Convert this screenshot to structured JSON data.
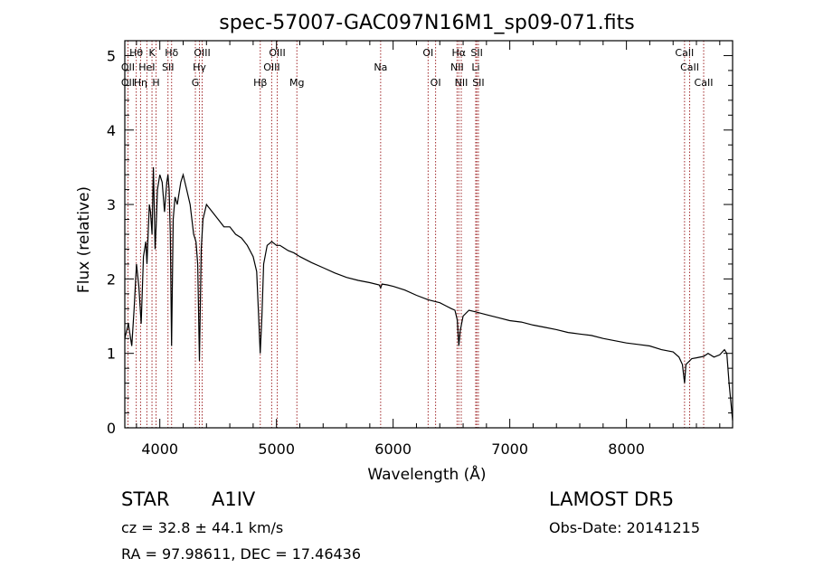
{
  "chart_data": {
    "type": "line",
    "title": "spec-57007-GAC097N16M1_sp09-071.fits",
    "xlabel": "Wavelength (Å)",
    "ylabel": "Flux (relative)",
    "xlim": [
      3700,
      8910
    ],
    "ylim": [
      0,
      5.2
    ],
    "x_ticks": [
      4000,
      5000,
      6000,
      7000,
      8000
    ],
    "y_ticks": [
      0,
      1,
      2,
      3,
      4,
      5
    ],
    "grid": false,
    "series": [
      {
        "color": "#000000",
        "x": [
          3700,
          3730,
          3760,
          3780,
          3800,
          3820,
          3840,
          3860,
          3880,
          3890,
          3900,
          3910,
          3920,
          3933,
          3945,
          3960,
          3968,
          3980,
          4000,
          4020,
          4040,
          4060,
          4070,
          4080,
          4090,
          4101,
          4115,
          4130,
          4150,
          4180,
          4200,
          4230,
          4260,
          4290,
          4310,
          4325,
          4340,
          4355,
          4370,
          4400,
          4450,
          4500,
          4550,
          4600,
          4650,
          4700,
          4750,
          4800,
          4830,
          4850,
          4861,
          4875,
          4890,
          4920,
          4960,
          5000,
          5030,
          5060,
          5100,
          5150,
          5200,
          5300,
          5400,
          5500,
          5600,
          5700,
          5800,
          5880,
          5893,
          5905,
          5950,
          6000,
          6100,
          6200,
          6300,
          6400,
          6450,
          6500,
          6530,
          6550,
          6563,
          6575,
          6600,
          6650,
          6700,
          6800,
          6900,
          7000,
          7100,
          7200,
          7300,
          7400,
          7500,
          7600,
          7700,
          7800,
          7900,
          8000,
          8100,
          8200,
          8300,
          8400,
          8450,
          8480,
          8498,
          8510,
          8542,
          8560,
          8600,
          8662,
          8700,
          8750,
          8800,
          8840,
          8860,
          8880,
          8910
        ],
        "y": [
          1.2,
          1.4,
          1.1,
          1.6,
          2.2,
          1.9,
          1.4,
          2.3,
          2.5,
          2.2,
          2.6,
          3.0,
          2.9,
          2.6,
          3.5,
          2.4,
          2.7,
          3.2,
          3.4,
          3.3,
          2.9,
          3.3,
          3.4,
          3.2,
          2.6,
          1.1,
          2.8,
          3.1,
          3.0,
          3.3,
          3.4,
          3.2,
          3.0,
          2.6,
          2.5,
          2.2,
          0.9,
          2.4,
          2.8,
          3.0,
          2.9,
          2.8,
          2.7,
          2.7,
          2.6,
          2.55,
          2.45,
          2.3,
          2.1,
          1.4,
          1.0,
          1.5,
          2.2,
          2.45,
          2.5,
          2.45,
          2.45,
          2.42,
          2.38,
          2.35,
          2.3,
          2.22,
          2.15,
          2.08,
          2.02,
          1.98,
          1.95,
          1.92,
          1.88,
          1.93,
          1.92,
          1.9,
          1.85,
          1.78,
          1.72,
          1.68,
          1.64,
          1.6,
          1.58,
          1.45,
          1.1,
          1.3,
          1.5,
          1.58,
          1.56,
          1.52,
          1.48,
          1.44,
          1.42,
          1.38,
          1.35,
          1.32,
          1.28,
          1.26,
          1.24,
          1.2,
          1.17,
          1.14,
          1.12,
          1.1,
          1.05,
          1.02,
          0.95,
          0.85,
          0.6,
          0.85,
          0.9,
          0.93,
          0.94,
          0.96,
          1.0,
          0.95,
          0.98,
          1.05,
          1.0,
          0.6,
          0.1
        ]
      }
    ],
    "spectral_lines": [
      {
        "label": "Hθ",
        "x": 3798,
        "row": 0
      },
      {
        "label": "OII",
        "x": 3727,
        "row": 1
      },
      {
        "label": "OII",
        "x": 3727,
        "row": 2
      },
      {
        "label": "Hη",
        "x": 3835,
        "row": 2
      },
      {
        "label": "HeI",
        "x": 3889,
        "row": 1
      },
      {
        "label": "K",
        "x": 3933,
        "row": 0
      },
      {
        "label": "H",
        "x": 3968,
        "row": 2
      },
      {
        "label": "SII",
        "x": 4070,
        "row": 1
      },
      {
        "label": "Hδ",
        "x": 4101,
        "row": 0
      },
      {
        "label": "OIII",
        "x": 4363,
        "row": 0
      },
      {
        "label": "Hγ",
        "x": 4340,
        "row": 1
      },
      {
        "label": "G",
        "x": 4305,
        "row": 2
      },
      {
        "label": "Hβ",
        "x": 4861,
        "row": 2
      },
      {
        "label": "OIII",
        "x": 4959,
        "row": 1
      },
      {
        "label": "OIII",
        "x": 5007,
        "row": 0
      },
      {
        "label": "Mg",
        "x": 5175,
        "row": 2
      },
      {
        "label": "Na",
        "x": 5893,
        "row": 1
      },
      {
        "label": "OI",
        "x": 6300,
        "row": 0
      },
      {
        "label": "OI",
        "x": 6364,
        "row": 2
      },
      {
        "label": "Hα",
        "x": 6563,
        "row": 0
      },
      {
        "label": "NII",
        "x": 6548,
        "row": 1
      },
      {
        "label": "NII",
        "x": 6584,
        "row": 2
      },
      {
        "label": "SII",
        "x": 6717,
        "row": 0
      },
      {
        "label": "Li",
        "x": 6708,
        "row": 1
      },
      {
        "label": "SII",
        "x": 6731,
        "row": 2
      },
      {
        "label": "CaII",
        "x": 8498,
        "row": 0
      },
      {
        "label": "CaII",
        "x": 8542,
        "row": 1
      },
      {
        "label": "CaII",
        "x": 8662,
        "row": 2
      }
    ]
  },
  "footer": {
    "object_class": "STAR",
    "subclass": "A1IV",
    "survey": "LAMOST DR5",
    "redshift": "cz = 32.8 ± 44.1 km/s",
    "obs_date": "Obs-Date: 20141215",
    "coords": "RA =  97.98611, DEC =  17.46436"
  }
}
